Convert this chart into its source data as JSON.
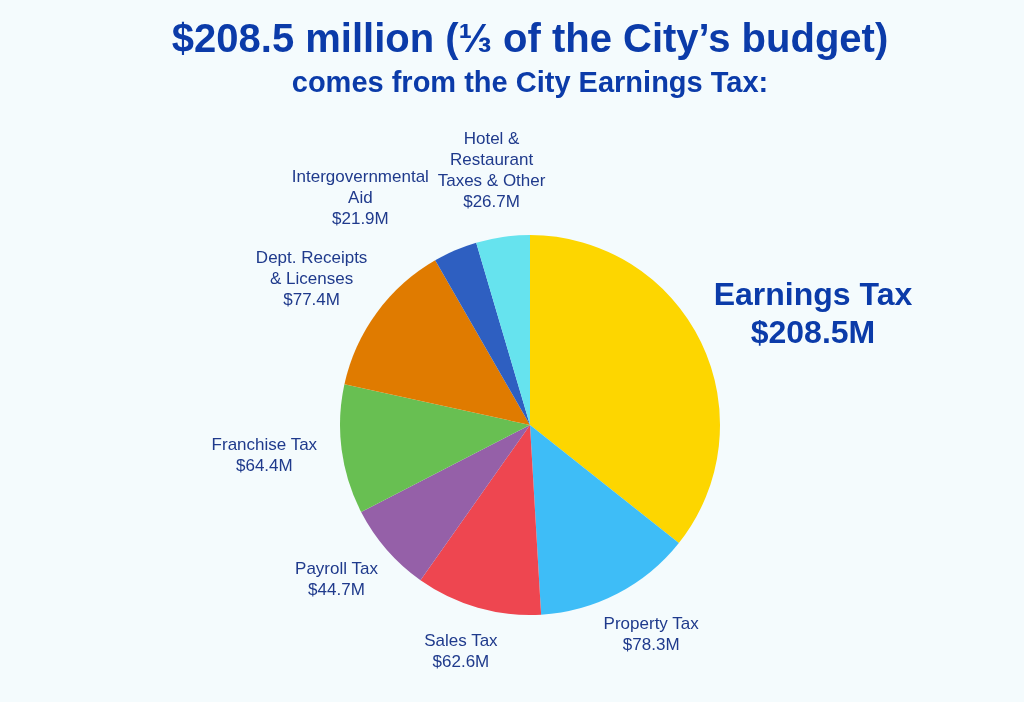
{
  "chart_data": {
    "type": "pie",
    "title": "$208.5 million (⅓ of the City’s budget)",
    "subtitle": "comes from the City Earnings Tax:",
    "categories": [
      "Earnings Tax",
      "Property Tax",
      "Sales Tax",
      "Payroll Tax",
      "Franchise Tax",
      "Dept. Receipts & Licenses",
      "Intergovernmental Aid",
      "Hotel & Restaurant Taxes & Other"
    ],
    "values": [
      208.5,
      78.3,
      62.6,
      44.7,
      64.4,
      77.4,
      21.9,
      26.7
    ],
    "value_labels": [
      "$208.5M",
      "$78.3M",
      "$62.6M",
      "$44.7M",
      "$64.4M",
      "$77.4M",
      "$21.9M",
      "$26.7M"
    ],
    "colors": [
      "#fdd600",
      "#3ebdf7",
      "#ee4650",
      "#9560a8",
      "#68bf52",
      "#e07b00",
      "#2e5fc1",
      "#66e3ee"
    ],
    "legend": false
  }
}
